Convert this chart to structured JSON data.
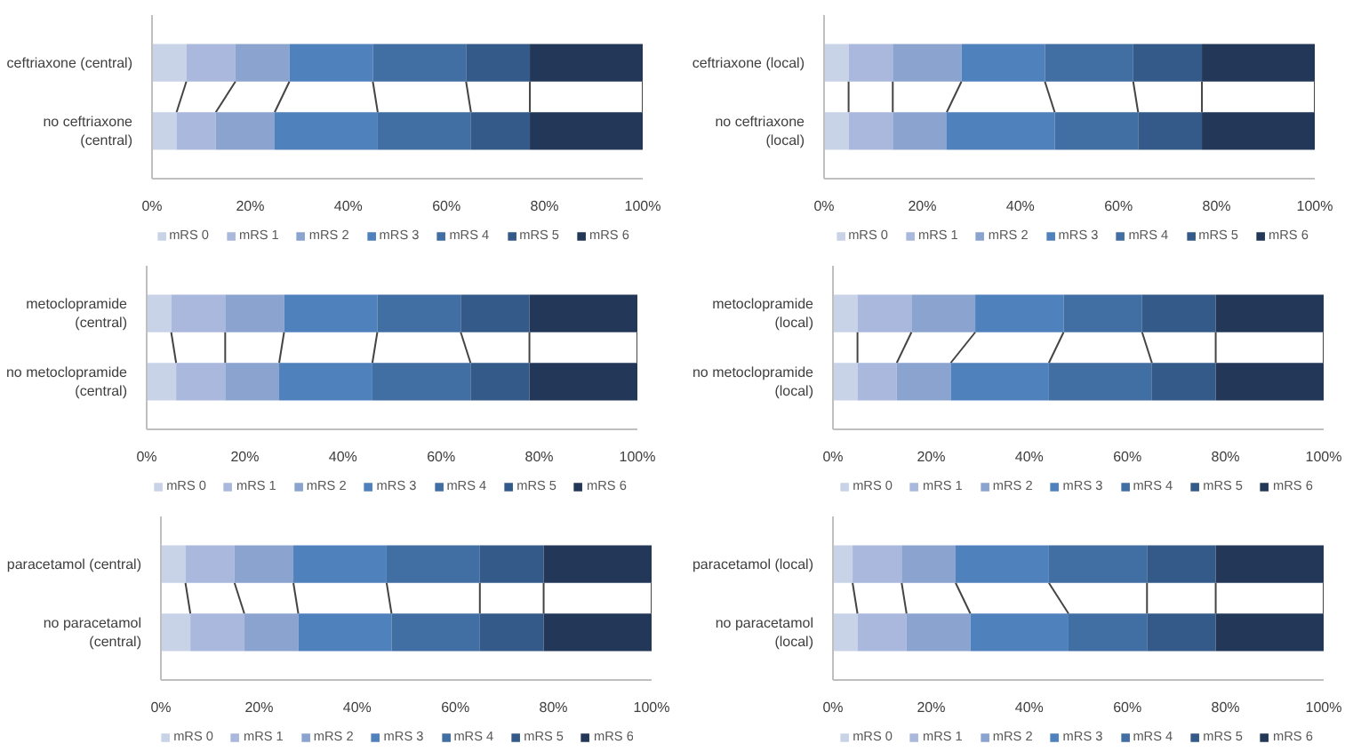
{
  "chart_data": [
    {
      "type": "bar",
      "orientation": "horizontal",
      "stacked": true,
      "categories": [
        "ceftriaxone (central)",
        "no ceftriaxone (central)"
      ],
      "xlim": [
        0,
        100
      ],
      "xticks": [
        {
          "value": 0,
          "label": "0%"
        },
        {
          "value": 20,
          "label": "20%"
        },
        {
          "value": 40,
          "label": "40%"
        },
        {
          "value": 60,
          "label": "60%"
        },
        {
          "value": 80,
          "label": "80%"
        },
        {
          "value": 100,
          "label": "100%"
        }
      ],
      "legend": "bottom",
      "grid": false,
      "series": [
        {
          "name": "mRS 0",
          "color": "#c9d3e8",
          "values": [
            7,
            5
          ]
        },
        {
          "name": "mRS 1",
          "color": "#a9b8dc",
          "values": [
            10,
            8
          ]
        },
        {
          "name": "mRS 2",
          "color": "#8aa3cf",
          "values": [
            11,
            12
          ]
        },
        {
          "name": "mRS 3",
          "color": "#4f81bd",
          "values": [
            17,
            21
          ]
        },
        {
          "name": "mRS 4",
          "color": "#416ea3",
          "values": [
            19,
            19
          ]
        },
        {
          "name": "mRS 5",
          "color": "#345a89",
          "values": [
            13,
            12
          ]
        },
        {
          "name": "mRS 6",
          "color": "#233858",
          "values": [
            23,
            23
          ]
        }
      ]
    },
    {
      "type": "bar",
      "orientation": "horizontal",
      "stacked": true,
      "categories": [
        "ceftriaxone (local)",
        "no ceftriaxone (local)"
      ],
      "xlim": [
        0,
        100
      ],
      "xticks": [
        {
          "value": 0,
          "label": "0%"
        },
        {
          "value": 20,
          "label": "20%"
        },
        {
          "value": 40,
          "label": "40%"
        },
        {
          "value": 60,
          "label": "60%"
        },
        {
          "value": 80,
          "label": "80%"
        },
        {
          "value": 100,
          "label": "100%"
        }
      ],
      "legend": "bottom",
      "grid": false,
      "series": [
        {
          "name": "mRS 0",
          "color": "#c9d3e8",
          "values": [
            5,
            5
          ]
        },
        {
          "name": "mRS 1",
          "color": "#a9b8dc",
          "values": [
            9,
            9
          ]
        },
        {
          "name": "mRS 2",
          "color": "#8aa3cf",
          "values": [
            14,
            11
          ]
        },
        {
          "name": "mRS 3",
          "color": "#4f81bd",
          "values": [
            17,
            22
          ]
        },
        {
          "name": "mRS 4",
          "color": "#416ea3",
          "values": [
            18,
            17
          ]
        },
        {
          "name": "mRS 5",
          "color": "#345a89",
          "values": [
            14,
            13
          ]
        },
        {
          "name": "mRS 6",
          "color": "#233858",
          "values": [
            23,
            23
          ]
        }
      ]
    },
    {
      "type": "bar",
      "orientation": "horizontal",
      "stacked": true,
      "categories": [
        "metoclopramide (central)",
        "no metoclopramide (central)"
      ],
      "xlim": [
        0,
        100
      ],
      "xticks": [
        {
          "value": 0,
          "label": "0%"
        },
        {
          "value": 20,
          "label": "20%"
        },
        {
          "value": 40,
          "label": "40%"
        },
        {
          "value": 60,
          "label": "60%"
        },
        {
          "value": 80,
          "label": "80%"
        },
        {
          "value": 100,
          "label": "100%"
        }
      ],
      "legend": "bottom",
      "grid": false,
      "series": [
        {
          "name": "mRS 0",
          "color": "#c9d3e8",
          "values": [
            5,
            6
          ]
        },
        {
          "name": "mRS 1",
          "color": "#a9b8dc",
          "values": [
            11,
            10
          ]
        },
        {
          "name": "mRS 2",
          "color": "#8aa3cf",
          "values": [
            12,
            11
          ]
        },
        {
          "name": "mRS 3",
          "color": "#4f81bd",
          "values": [
            19,
            19
          ]
        },
        {
          "name": "mRS 4",
          "color": "#416ea3",
          "values": [
            17,
            20
          ]
        },
        {
          "name": "mRS 5",
          "color": "#345a89",
          "values": [
            14,
            12
          ]
        },
        {
          "name": "mRS 6",
          "color": "#233858",
          "values": [
            22,
            22
          ]
        }
      ]
    },
    {
      "type": "bar",
      "orientation": "horizontal",
      "stacked": true,
      "categories": [
        "metoclopramide (local)",
        "no metoclopramide (local)"
      ],
      "xlim": [
        0,
        100
      ],
      "xticks": [
        {
          "value": 0,
          "label": "0%"
        },
        {
          "value": 20,
          "label": "20%"
        },
        {
          "value": 40,
          "label": "40%"
        },
        {
          "value": 60,
          "label": "60%"
        },
        {
          "value": 80,
          "label": "80%"
        },
        {
          "value": 100,
          "label": "100%"
        }
      ],
      "legend": "bottom",
      "grid": false,
      "series": [
        {
          "name": "mRS 0",
          "color": "#c9d3e8",
          "values": [
            5,
            5
          ]
        },
        {
          "name": "mRS 1",
          "color": "#a9b8dc",
          "values": [
            11,
            8
          ]
        },
        {
          "name": "mRS 2",
          "color": "#8aa3cf",
          "values": [
            13,
            11
          ]
        },
        {
          "name": "mRS 3",
          "color": "#4f81bd",
          "values": [
            18,
            20
          ]
        },
        {
          "name": "mRS 4",
          "color": "#416ea3",
          "values": [
            16,
            21
          ]
        },
        {
          "name": "mRS 5",
          "color": "#345a89",
          "values": [
            15,
            13
          ]
        },
        {
          "name": "mRS 6",
          "color": "#233858",
          "values": [
            22,
            22
          ]
        }
      ]
    },
    {
      "type": "bar",
      "orientation": "horizontal",
      "stacked": true,
      "categories": [
        "paracetamol (central)",
        "no paracetamol (central)"
      ],
      "xlim": [
        0,
        100
      ],
      "xticks": [
        {
          "value": 0,
          "label": "0%"
        },
        {
          "value": 20,
          "label": "20%"
        },
        {
          "value": 40,
          "label": "40%"
        },
        {
          "value": 60,
          "label": "60%"
        },
        {
          "value": 80,
          "label": "80%"
        },
        {
          "value": 100,
          "label": "100%"
        }
      ],
      "legend": "bottom",
      "grid": false,
      "series": [
        {
          "name": "mRS 0",
          "color": "#c9d3e8",
          "values": [
            5,
            6
          ]
        },
        {
          "name": "mRS 1",
          "color": "#a9b8dc",
          "values": [
            10,
            11
          ]
        },
        {
          "name": "mRS 2",
          "color": "#8aa3cf",
          "values": [
            12,
            11
          ]
        },
        {
          "name": "mRS 3",
          "color": "#4f81bd",
          "values": [
            19,
            19
          ]
        },
        {
          "name": "mRS 4",
          "color": "#416ea3",
          "values": [
            19,
            18
          ]
        },
        {
          "name": "mRS 5",
          "color": "#345a89",
          "values": [
            13,
            13
          ]
        },
        {
          "name": "mRS 6",
          "color": "#233858",
          "values": [
            22,
            22
          ]
        }
      ]
    },
    {
      "type": "bar",
      "orientation": "horizontal",
      "stacked": true,
      "categories": [
        "paracetamol (local)",
        "no paracetamol (local)"
      ],
      "xlim": [
        0,
        100
      ],
      "xticks": [
        {
          "value": 0,
          "label": "0%"
        },
        {
          "value": 20,
          "label": "20%"
        },
        {
          "value": 40,
          "label": "40%"
        },
        {
          "value": 60,
          "label": "60%"
        },
        {
          "value": 80,
          "label": "80%"
        },
        {
          "value": 100,
          "label": "100%"
        }
      ],
      "legend": "bottom",
      "grid": false,
      "series": [
        {
          "name": "mRS 0",
          "color": "#c9d3e8",
          "values": [
            4,
            5
          ]
        },
        {
          "name": "mRS 1",
          "color": "#a9b8dc",
          "values": [
            10,
            10
          ]
        },
        {
          "name": "mRS 2",
          "color": "#8aa3cf",
          "values": [
            11,
            13
          ]
        },
        {
          "name": "mRS 3",
          "color": "#4f81bd",
          "values": [
            19,
            20
          ]
        },
        {
          "name": "mRS 4",
          "color": "#416ea3",
          "values": [
            20,
            16
          ]
        },
        {
          "name": "mRS 5",
          "color": "#345a89",
          "values": [
            14,
            14
          ]
        },
        {
          "name": "mRS 6",
          "color": "#233858",
          "values": [
            22,
            22
          ]
        }
      ]
    }
  ]
}
